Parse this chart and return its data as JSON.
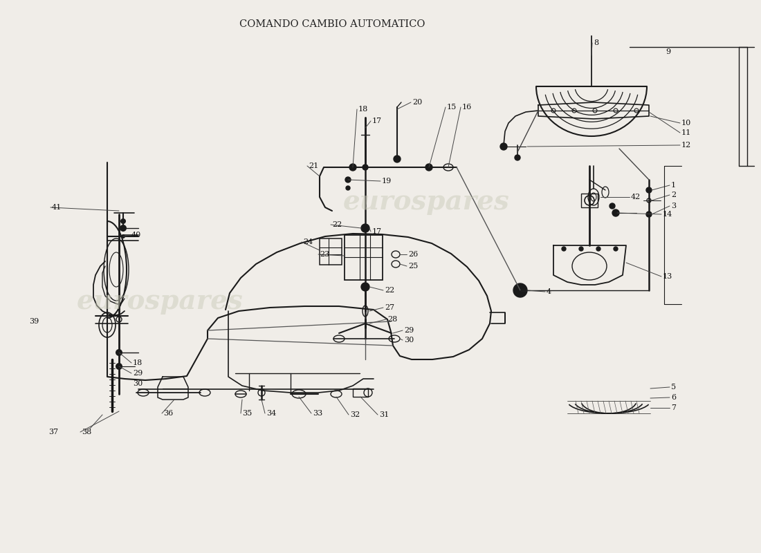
{
  "title": "COMANDO CAMBIO AUTOMATICO",
  "bg_color": "#f0ede8",
  "line_color": "#1a1a1a",
  "wm_color": "#ccccbb",
  "wm_text": "eurospares",
  "wm1": [
    0.21,
    0.545
  ],
  "wm2": [
    0.56,
    0.365
  ],
  "label_fs": 8.0,
  "title_fs": 10.5
}
